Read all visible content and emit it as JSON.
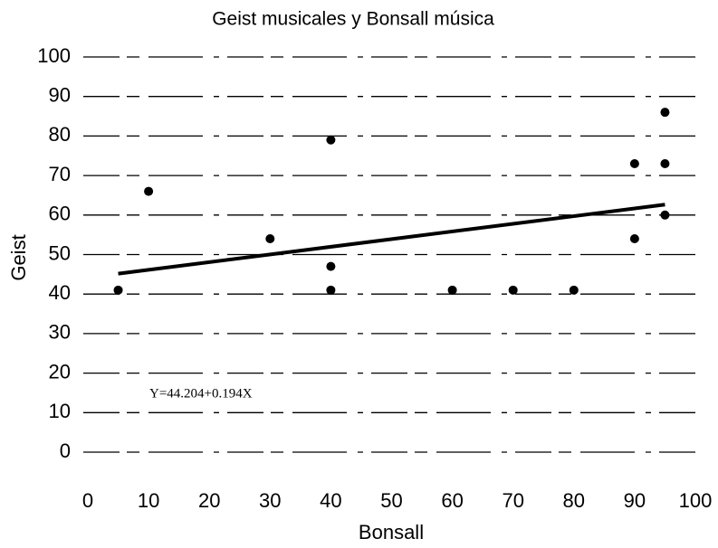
{
  "chart_data": {
    "type": "scatter",
    "title": "Geist musicales y Bonsall música",
    "x_label": "Bonsall",
    "y_label": "Geist",
    "annotation": "Y=44.204+0.194X",
    "color": "#000000",
    "grid": true,
    "xlim": [
      0,
      100
    ],
    "ylim": [
      0,
      100
    ],
    "xticks": [
      0,
      10,
      20,
      30,
      40,
      50,
      60,
      70,
      80,
      90,
      100
    ],
    "yticks": [
      0,
      10,
      20,
      30,
      40,
      50,
      60,
      70,
      80,
      90,
      100
    ],
    "x": [
      5,
      10,
      30,
      40,
      40,
      40,
      60,
      70,
      80,
      90,
      90,
      95,
      95,
      95
    ],
    "values": [
      41,
      66,
      54,
      79,
      47,
      41,
      41,
      41,
      41,
      73,
      54,
      86,
      73,
      60
    ],
    "trendline": {
      "x": [
        5,
        95
      ],
      "values": [
        45.174,
        62.634
      ]
    }
  }
}
